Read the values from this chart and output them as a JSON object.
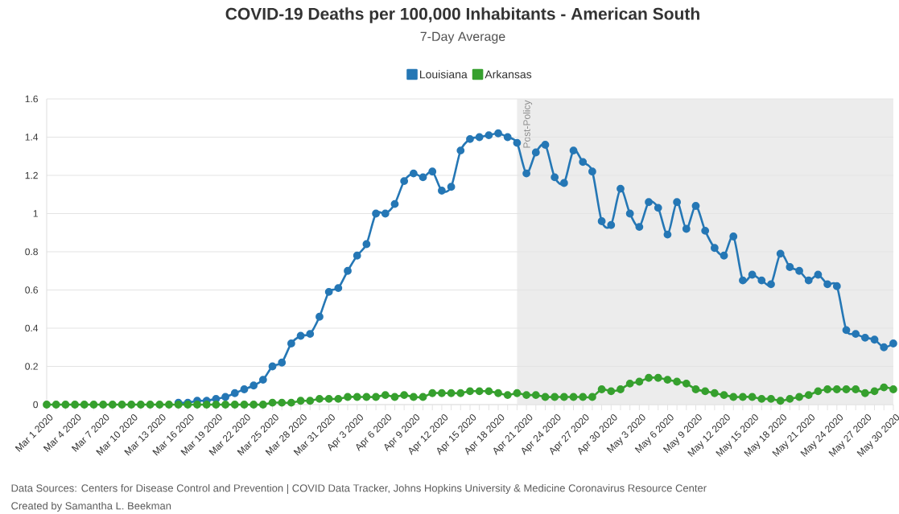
{
  "chart_data": {
    "type": "line",
    "title": "COVID-19 Deaths per 100,000 Inhabitants - American South",
    "subtitle": "7-Day Average",
    "x": [
      "2020-03-01",
      "2020-03-02",
      "2020-03-03",
      "2020-03-04",
      "2020-03-05",
      "2020-03-06",
      "2020-03-07",
      "2020-03-08",
      "2020-03-09",
      "2020-03-10",
      "2020-03-11",
      "2020-03-12",
      "2020-03-13",
      "2020-03-14",
      "2020-03-15",
      "2020-03-16",
      "2020-03-17",
      "2020-03-18",
      "2020-03-19",
      "2020-03-20",
      "2020-03-21",
      "2020-03-22",
      "2020-03-23",
      "2020-03-24",
      "2020-03-25",
      "2020-03-26",
      "2020-03-27",
      "2020-03-28",
      "2020-03-29",
      "2020-03-30",
      "2020-03-31",
      "2020-04-01",
      "2020-04-02",
      "2020-04-03",
      "2020-04-04",
      "2020-04-05",
      "2020-04-06",
      "2020-04-07",
      "2020-04-08",
      "2020-04-09",
      "2020-04-10",
      "2020-04-11",
      "2020-04-12",
      "2020-04-13",
      "2020-04-14",
      "2020-04-15",
      "2020-04-16",
      "2020-04-17",
      "2020-04-18",
      "2020-04-19",
      "2020-04-20",
      "2020-04-21",
      "2020-04-22",
      "2020-04-23",
      "2020-04-24",
      "2020-04-25",
      "2020-04-26",
      "2020-04-27",
      "2020-04-28",
      "2020-04-29",
      "2020-04-30",
      "2020-05-01",
      "2020-05-02",
      "2020-05-03",
      "2020-05-04",
      "2020-05-05",
      "2020-05-06",
      "2020-05-07",
      "2020-05-08",
      "2020-05-09",
      "2020-05-10",
      "2020-05-11",
      "2020-05-12",
      "2020-05-13",
      "2020-05-14",
      "2020-05-15",
      "2020-05-16",
      "2020-05-17",
      "2020-05-18",
      "2020-05-19",
      "2020-05-20",
      "2020-05-21",
      "2020-05-22",
      "2020-05-23",
      "2020-05-24",
      "2020-05-25",
      "2020-05-26",
      "2020-05-27",
      "2020-05-28",
      "2020-05-29",
      "2020-05-30"
    ],
    "series": [
      {
        "name": "Louisiana",
        "color": "#2577b5",
        "values": [
          null,
          null,
          null,
          null,
          null,
          null,
          null,
          null,
          null,
          null,
          null,
          null,
          null,
          null,
          0.01,
          0.01,
          0.02,
          0.02,
          0.03,
          0.04,
          0.06,
          0.08,
          0.1,
          0.13,
          0.2,
          0.22,
          0.32,
          0.36,
          0.37,
          0.46,
          0.59,
          0.61,
          0.7,
          0.78,
          0.84,
          1.0,
          1.0,
          1.05,
          1.17,
          1.21,
          1.19,
          1.22,
          1.12,
          1.14,
          1.33,
          1.39,
          1.4,
          1.41,
          1.42,
          1.4,
          1.37,
          1.21,
          1.32,
          1.36,
          1.19,
          1.16,
          1.33,
          1.27,
          1.22,
          0.96,
          0.94,
          1.13,
          1.0,
          0.93,
          1.06,
          1.03,
          0.89,
          1.06,
          0.92,
          1.04,
          0.91,
          0.82,
          0.78,
          0.88,
          0.65,
          0.68,
          0.65,
          0.63,
          0.79,
          0.72,
          0.7,
          0.65,
          0.68,
          0.63,
          0.62,
          0.39,
          0.37,
          0.35,
          0.34,
          0.3,
          0.32
        ]
      },
      {
        "name": "Arkansas",
        "color": "#36a02e",
        "values": [
          0,
          0,
          0,
          0,
          0,
          0,
          0,
          0,
          0,
          0,
          0,
          0,
          0,
          0,
          0,
          0,
          0,
          0,
          0,
          0,
          0,
          0,
          0,
          0,
          0.01,
          0.01,
          0.01,
          0.02,
          0.02,
          0.03,
          0.03,
          0.03,
          0.04,
          0.04,
          0.04,
          0.04,
          0.05,
          0.04,
          0.05,
          0.04,
          0.04,
          0.06,
          0.06,
          0.06,
          0.06,
          0.07,
          0.07,
          0.07,
          0.06,
          0.05,
          0.06,
          0.05,
          0.05,
          0.04,
          0.04,
          0.04,
          0.04,
          0.04,
          0.04,
          0.08,
          0.07,
          0.08,
          0.11,
          0.12,
          0.14,
          0.14,
          0.13,
          0.12,
          0.11,
          0.08,
          0.07,
          0.06,
          0.05,
          0.04,
          0.04,
          0.04,
          0.03,
          0.03,
          0.02,
          0.03,
          0.04,
          0.05,
          0.07,
          0.08,
          0.08,
          0.08,
          0.08,
          0.06,
          0.07,
          0.09,
          0.08
        ]
      }
    ],
    "xlim": [
      "2020-03-01",
      "2020-05-30"
    ],
    "xticks": [
      {
        "value": "2020-03-01",
        "label": "Mar 1 2020"
      },
      {
        "value": "2020-03-02",
        "label": null
      },
      {
        "value": "2020-03-03",
        "label": null
      },
      {
        "value": "2020-03-04",
        "label": "Mar 4 2020"
      },
      {
        "value": "2020-03-05",
        "label": null
      },
      {
        "value": "2020-03-06",
        "label": null
      },
      {
        "value": "2020-03-07",
        "label": "Mar 7 2020"
      },
      {
        "value": "2020-03-08",
        "label": null
      },
      {
        "value": "2020-03-09",
        "label": null
      },
      {
        "value": "2020-03-10",
        "label": "Mar 10 2020"
      },
      {
        "value": "2020-03-11",
        "label": null
      },
      {
        "value": "2020-03-12",
        "label": null
      },
      {
        "value": "2020-03-13",
        "label": "Mar 13 2020"
      },
      {
        "value": "2020-03-14",
        "label": null
      },
      {
        "value": "2020-03-15",
        "label": null
      },
      {
        "value": "2020-03-16",
        "label": "Mar 16 2020"
      },
      {
        "value": "2020-03-17",
        "label": null
      },
      {
        "value": "2020-03-18",
        "label": null
      },
      {
        "value": "2020-03-19",
        "label": "Mar 19 2020"
      },
      {
        "value": "2020-03-20",
        "label": null
      },
      {
        "value": "2020-03-21",
        "label": null
      },
      {
        "value": "2020-03-22",
        "label": "Mar 22 2020"
      },
      {
        "value": "2020-03-23",
        "label": null
      },
      {
        "value": "2020-03-24",
        "label": null
      },
      {
        "value": "2020-03-25",
        "label": "Mar 25 2020"
      },
      {
        "value": "2020-03-26",
        "label": null
      },
      {
        "value": "2020-03-27",
        "label": null
      },
      {
        "value": "2020-03-28",
        "label": "Mar 28 2020"
      },
      {
        "value": "2020-03-29",
        "label": null
      },
      {
        "value": "2020-03-30",
        "label": null
      },
      {
        "value": "2020-03-31",
        "label": "Mar 31 2020"
      },
      {
        "value": "2020-04-01",
        "label": null
      },
      {
        "value": "2020-04-02",
        "label": null
      },
      {
        "value": "2020-04-03",
        "label": "Apr 3 2020"
      },
      {
        "value": "2020-04-04",
        "label": null
      },
      {
        "value": "2020-04-05",
        "label": null
      },
      {
        "value": "2020-04-06",
        "label": "Apr 6 2020"
      },
      {
        "value": "2020-04-07",
        "label": null
      },
      {
        "value": "2020-04-08",
        "label": null
      },
      {
        "value": "2020-04-09",
        "label": "Apr 9 2020"
      },
      {
        "value": "2020-04-10",
        "label": null
      },
      {
        "value": "2020-04-11",
        "label": null
      },
      {
        "value": "2020-04-12",
        "label": "Apr 12 2020"
      },
      {
        "value": "2020-04-13",
        "label": null
      },
      {
        "value": "2020-04-14",
        "label": null
      },
      {
        "value": "2020-04-15",
        "label": "Apr 15 2020"
      },
      {
        "value": "2020-04-16",
        "label": null
      },
      {
        "value": "2020-04-17",
        "label": null
      },
      {
        "value": "2020-04-18",
        "label": "Apr 18 2020"
      },
      {
        "value": "2020-04-19",
        "label": null
      },
      {
        "value": "2020-04-20",
        "label": null
      },
      {
        "value": "2020-04-21",
        "label": "Apr 21 2020"
      },
      {
        "value": "2020-04-22",
        "label": null
      },
      {
        "value": "2020-04-23",
        "label": null
      },
      {
        "value": "2020-04-24",
        "label": "Apr 24 2020"
      },
      {
        "value": "2020-04-25",
        "label": null
      },
      {
        "value": "2020-04-26",
        "label": null
      },
      {
        "value": "2020-04-27",
        "label": "Apr 27 2020"
      },
      {
        "value": "2020-04-28",
        "label": null
      },
      {
        "value": "2020-04-29",
        "label": null
      },
      {
        "value": "2020-04-30",
        "label": "Apr 30 2020"
      },
      {
        "value": "2020-05-01",
        "label": null
      },
      {
        "value": "2020-05-02",
        "label": null
      },
      {
        "value": "2020-05-03",
        "label": "May 3 2020"
      },
      {
        "value": "2020-05-04",
        "label": null
      },
      {
        "value": "2020-05-05",
        "label": null
      },
      {
        "value": "2020-05-06",
        "label": "May 6 2020"
      },
      {
        "value": "2020-05-07",
        "label": null
      },
      {
        "value": "2020-05-08",
        "label": null
      },
      {
        "value": "2020-05-09",
        "label": "May 9 2020"
      },
      {
        "value": "2020-05-10",
        "label": null
      },
      {
        "value": "2020-05-11",
        "label": null
      },
      {
        "value": "2020-05-12",
        "label": "May 12 2020"
      },
      {
        "value": "2020-05-13",
        "label": null
      },
      {
        "value": "2020-05-14",
        "label": null
      },
      {
        "value": "2020-05-15",
        "label": "May 15 2020"
      },
      {
        "value": "2020-05-16",
        "label": null
      },
      {
        "value": "2020-05-17",
        "label": null
      },
      {
        "value": "2020-05-18",
        "label": "May 18 2020"
      },
      {
        "value": "2020-05-19",
        "label": null
      },
      {
        "value": "2020-05-20",
        "label": null
      },
      {
        "value": "2020-05-21",
        "label": "May 21 2020"
      },
      {
        "value": "2020-05-22",
        "label": null
      },
      {
        "value": "2020-05-23",
        "label": null
      },
      {
        "value": "2020-05-24",
        "label": "May 24 2020"
      },
      {
        "value": "2020-05-25",
        "label": null
      },
      {
        "value": "2020-05-26",
        "label": null
      },
      {
        "value": "2020-05-27",
        "label": "May 27 2020"
      },
      {
        "value": "2020-05-28",
        "label": null
      },
      {
        "value": "2020-05-29",
        "label": null
      },
      {
        "value": "2020-05-30",
        "label": "May 30 2020"
      }
    ],
    "ylim": [
      0,
      1.6
    ],
    "yticks": [
      0,
      0.2,
      0.4,
      0.6,
      0.8,
      1,
      1.2,
      1.4,
      1.6
    ],
    "bands": [
      {
        "axis": "x",
        "from": "2020-04-20",
        "to": "2020-05-30",
        "label": "Post-Policy",
        "color": "#ececec"
      }
    ],
    "grid": "y",
    "legend": "top",
    "marker": "circle",
    "line_style": "solid",
    "annotations": [
      "Data Sources: Centers for Disease Control and Prevention | COVID Data Tracker, Johns Hopkins University & Medicine Coronavirus Resource Center",
      "Created by Samantha L. Beekman"
    ]
  }
}
